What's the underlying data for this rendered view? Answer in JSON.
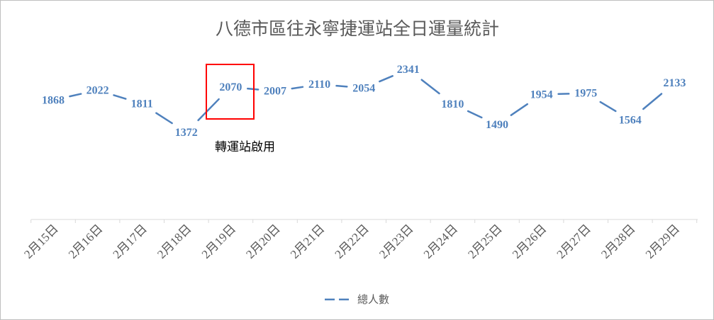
{
  "chart_data": {
    "type": "line",
    "title": "八德市區往永寧捷運站全日運量統計",
    "xlabel": "",
    "ylabel": "",
    "categories": [
      "2月15日",
      "2月16日",
      "2月17日",
      "2月18日",
      "2月19日",
      "2月20日",
      "2月21日",
      "2月22日",
      "2月23日",
      "2月24日",
      "2月25日",
      "2月26日",
      "2月27日",
      "2月28日",
      "2月29日"
    ],
    "series": [
      {
        "name": "總人數",
        "values": [
          1868,
          2022,
          1811,
          1372,
          2070,
          2007,
          2110,
          2054,
          2341,
          1810,
          1490,
          1954,
          1975,
          1564,
          2133
        ],
        "color": "#4f81bd"
      }
    ],
    "y_axis_visible": false,
    "grid": false,
    "legend_position": "bottom",
    "annotation": {
      "text": "轉運站啟用",
      "category": "2月19日",
      "box_color": "#ff0000"
    }
  }
}
